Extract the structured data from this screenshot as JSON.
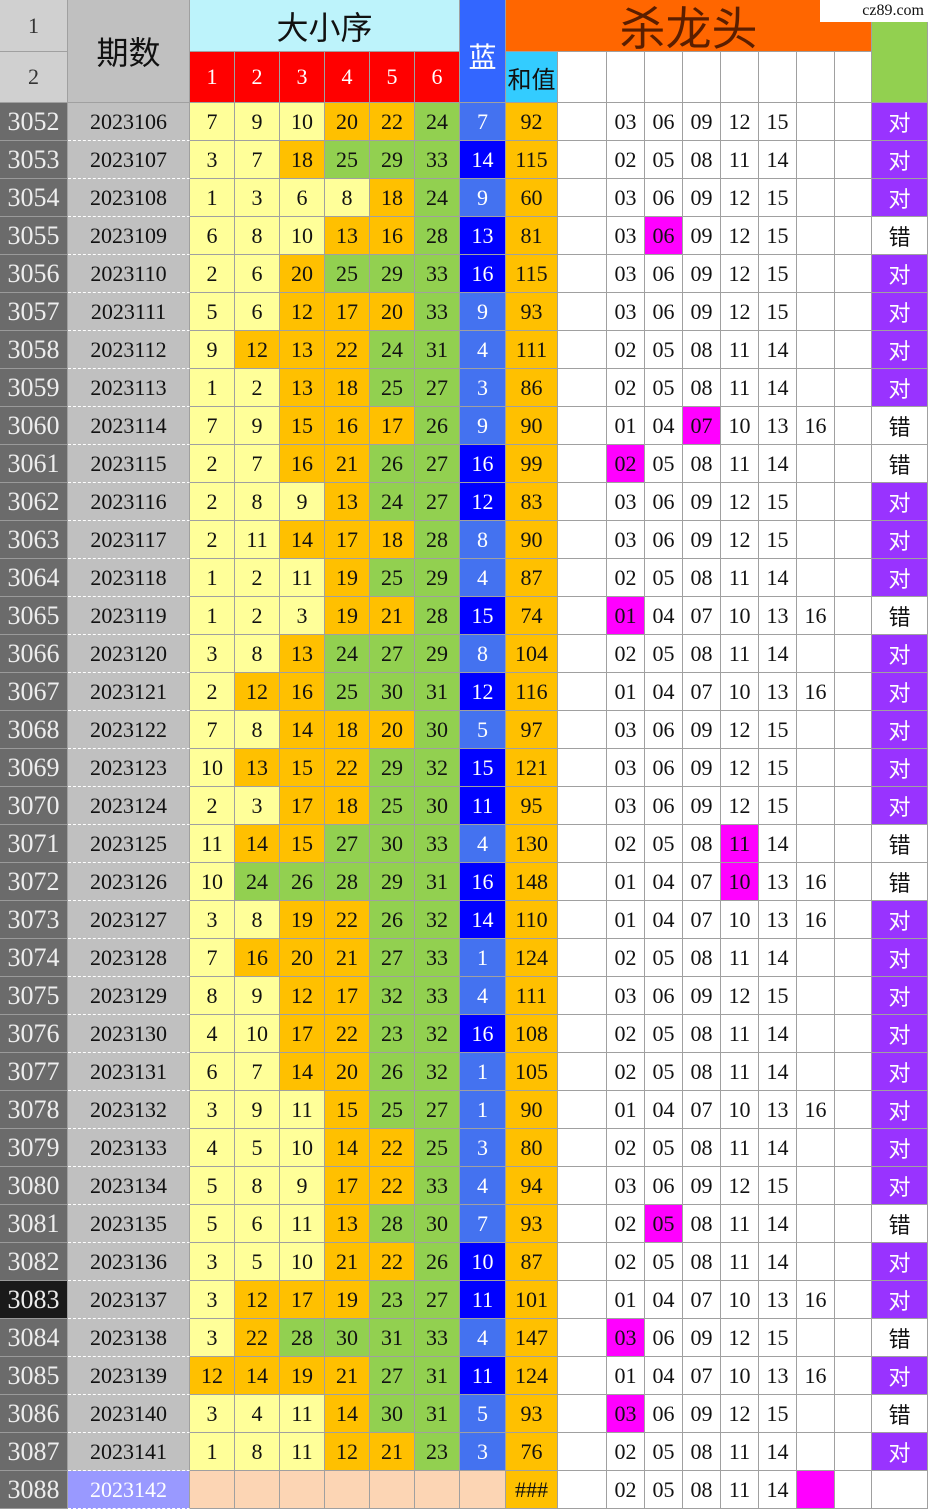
{
  "header": {
    "row_numbers": [
      "1",
      "2"
    ],
    "period": "期数",
    "order": "大小序",
    "ball_cols": [
      "1",
      "2",
      "3",
      "4",
      "5",
      "6"
    ],
    "blue": "蓝",
    "kill": "杀龙头",
    "sum": "和值",
    "watermark": "cz89.com"
  },
  "rows": [
    {
      "n": 3052,
      "period": 2023106,
      "balls": [
        7,
        9,
        10,
        20,
        22,
        24
      ],
      "blue": 7,
      "sum": 92,
      "kill": [
        "03",
        "06",
        "09",
        "12",
        "15"
      ],
      "result": "对"
    },
    {
      "n": 3053,
      "period": 2023107,
      "balls": [
        3,
        7,
        18,
        25,
        29,
        33
      ],
      "blue": 14,
      "sum": 115,
      "kill": [
        "02",
        "05",
        "08",
        "11",
        "14"
      ],
      "result": "对"
    },
    {
      "n": 3054,
      "period": 2023108,
      "balls": [
        1,
        3,
        6,
        8,
        18,
        24
      ],
      "blue": 9,
      "sum": 60,
      "kill": [
        "03",
        "06",
        "09",
        "12",
        "15"
      ],
      "result": "对"
    },
    {
      "n": 3055,
      "period": 2023109,
      "balls": [
        6,
        8,
        10,
        13,
        16,
        28
      ],
      "blue": 13,
      "sum": 81,
      "kill": [
        "03",
        "06",
        "09",
        "12",
        "15"
      ],
      "result": "错"
    },
    {
      "n": 3056,
      "period": 2023110,
      "balls": [
        2,
        6,
        20,
        25,
        29,
        33
      ],
      "blue": 16,
      "sum": 115,
      "kill": [
        "03",
        "06",
        "09",
        "12",
        "15"
      ],
      "result": "对"
    },
    {
      "n": 3057,
      "period": 2023111,
      "balls": [
        5,
        6,
        12,
        17,
        20,
        33
      ],
      "blue": 9,
      "sum": 93,
      "kill": [
        "03",
        "06",
        "09",
        "12",
        "15"
      ],
      "result": "对"
    },
    {
      "n": 3058,
      "period": 2023112,
      "balls": [
        9,
        12,
        13,
        22,
        24,
        31
      ],
      "blue": 4,
      "sum": 111,
      "kill": [
        "02",
        "05",
        "08",
        "11",
        "14"
      ],
      "result": "对"
    },
    {
      "n": 3059,
      "period": 2023113,
      "balls": [
        1,
        2,
        13,
        18,
        25,
        27
      ],
      "blue": 3,
      "sum": 86,
      "kill": [
        "02",
        "05",
        "08",
        "11",
        "14"
      ],
      "result": "对"
    },
    {
      "n": 3060,
      "period": 2023114,
      "balls": [
        7,
        9,
        15,
        16,
        17,
        26
      ],
      "blue": 9,
      "sum": 90,
      "kill": [
        "01",
        "04",
        "07",
        "10",
        "13",
        "16"
      ],
      "result": "错"
    },
    {
      "n": 3061,
      "period": 2023115,
      "balls": [
        2,
        7,
        16,
        21,
        26,
        27
      ],
      "blue": 16,
      "sum": 99,
      "kill": [
        "02",
        "05",
        "08",
        "11",
        "14"
      ],
      "result": "错"
    },
    {
      "n": 3062,
      "period": 2023116,
      "balls": [
        2,
        8,
        9,
        13,
        24,
        27
      ],
      "blue": 12,
      "sum": 83,
      "kill": [
        "03",
        "06",
        "09",
        "12",
        "15"
      ],
      "result": "对"
    },
    {
      "n": 3063,
      "period": 2023117,
      "balls": [
        2,
        11,
        14,
        17,
        18,
        28
      ],
      "blue": 8,
      "sum": 90,
      "kill": [
        "03",
        "06",
        "09",
        "12",
        "15"
      ],
      "result": "对"
    },
    {
      "n": 3064,
      "period": 2023118,
      "balls": [
        1,
        2,
        11,
        19,
        25,
        29
      ],
      "blue": 4,
      "sum": 87,
      "kill": [
        "02",
        "05",
        "08",
        "11",
        "14"
      ],
      "result": "对"
    },
    {
      "n": 3065,
      "period": 2023119,
      "balls": [
        1,
        2,
        3,
        19,
        21,
        28
      ],
      "blue": 15,
      "sum": 74,
      "kill": [
        "01",
        "04",
        "07",
        "10",
        "13",
        "16"
      ],
      "result": "错"
    },
    {
      "n": 3066,
      "period": 2023120,
      "balls": [
        3,
        8,
        13,
        24,
        27,
        29
      ],
      "blue": 8,
      "sum": 104,
      "kill": [
        "02",
        "05",
        "08",
        "11",
        "14"
      ],
      "result": "对"
    },
    {
      "n": 3067,
      "period": 2023121,
      "balls": [
        2,
        12,
        16,
        25,
        30,
        31
      ],
      "blue": 12,
      "sum": 116,
      "kill": [
        "01",
        "04",
        "07",
        "10",
        "13",
        "16"
      ],
      "result": "对"
    },
    {
      "n": 3068,
      "period": 2023122,
      "balls": [
        7,
        8,
        14,
        18,
        20,
        30
      ],
      "blue": 5,
      "sum": 97,
      "kill": [
        "03",
        "06",
        "09",
        "12",
        "15"
      ],
      "result": "对"
    },
    {
      "n": 3069,
      "period": 2023123,
      "balls": [
        10,
        13,
        15,
        22,
        29,
        32
      ],
      "blue": 15,
      "sum": 121,
      "kill": [
        "03",
        "06",
        "09",
        "12",
        "15"
      ],
      "result": "对"
    },
    {
      "n": 3070,
      "period": 2023124,
      "balls": [
        2,
        3,
        17,
        18,
        25,
        30
      ],
      "blue": 11,
      "sum": 95,
      "kill": [
        "03",
        "06",
        "09",
        "12",
        "15"
      ],
      "result": "对"
    },
    {
      "n": 3071,
      "period": 2023125,
      "balls": [
        11,
        14,
        15,
        27,
        30,
        33
      ],
      "blue": 4,
      "sum": 130,
      "kill": [
        "02",
        "05",
        "08",
        "11",
        "14"
      ],
      "result": "错"
    },
    {
      "n": 3072,
      "period": 2023126,
      "balls": [
        10,
        24,
        26,
        28,
        29,
        31
      ],
      "blue": 16,
      "sum": 148,
      "kill": [
        "01",
        "04",
        "07",
        "10",
        "13",
        "16"
      ],
      "result": "错"
    },
    {
      "n": 3073,
      "period": 2023127,
      "balls": [
        3,
        8,
        19,
        22,
        26,
        32
      ],
      "blue": 14,
      "sum": 110,
      "kill": [
        "01",
        "04",
        "07",
        "10",
        "13",
        "16"
      ],
      "result": "对"
    },
    {
      "n": 3074,
      "period": 2023128,
      "balls": [
        7,
        16,
        20,
        21,
        27,
        33
      ],
      "blue": 1,
      "sum": 124,
      "kill": [
        "02",
        "05",
        "08",
        "11",
        "14"
      ],
      "result": "对"
    },
    {
      "n": 3075,
      "period": 2023129,
      "balls": [
        8,
        9,
        12,
        17,
        32,
        33
      ],
      "blue": 4,
      "sum": 111,
      "kill": [
        "03",
        "06",
        "09",
        "12",
        "15"
      ],
      "result": "对"
    },
    {
      "n": 3076,
      "period": 2023130,
      "balls": [
        4,
        10,
        17,
        22,
        23,
        32
      ],
      "blue": 16,
      "sum": 108,
      "kill": [
        "02",
        "05",
        "08",
        "11",
        "14"
      ],
      "result": "对"
    },
    {
      "n": 3077,
      "period": 2023131,
      "balls": [
        6,
        7,
        14,
        20,
        26,
        32
      ],
      "blue": 1,
      "sum": 105,
      "kill": [
        "02",
        "05",
        "08",
        "11",
        "14"
      ],
      "result": "对"
    },
    {
      "n": 3078,
      "period": 2023132,
      "balls": [
        3,
        9,
        11,
        15,
        25,
        27
      ],
      "blue": 1,
      "sum": 90,
      "kill": [
        "01",
        "04",
        "07",
        "10",
        "13",
        "16"
      ],
      "result": "对"
    },
    {
      "n": 3079,
      "period": 2023133,
      "balls": [
        4,
        5,
        10,
        14,
        22,
        25
      ],
      "blue": 3,
      "sum": 80,
      "kill": [
        "02",
        "05",
        "08",
        "11",
        "14"
      ],
      "result": "对"
    },
    {
      "n": 3080,
      "period": 2023134,
      "balls": [
        5,
        8,
        9,
        17,
        22,
        33
      ],
      "blue": 4,
      "sum": 94,
      "kill": [
        "03",
        "06",
        "09",
        "12",
        "15"
      ],
      "result": "对"
    },
    {
      "n": 3081,
      "period": 2023135,
      "balls": [
        5,
        6,
        11,
        13,
        28,
        30
      ],
      "blue": 7,
      "sum": 93,
      "kill": [
        "02",
        "05",
        "08",
        "11",
        "14"
      ],
      "result": "错"
    },
    {
      "n": 3082,
      "period": 2023136,
      "balls": [
        3,
        5,
        10,
        21,
        22,
        26
      ],
      "blue": 10,
      "sum": 87,
      "kill": [
        "02",
        "05",
        "08",
        "11",
        "14"
      ],
      "result": "对"
    },
    {
      "n": 3083,
      "period": 2023137,
      "balls": [
        3,
        12,
        17,
        19,
        23,
        27
      ],
      "blue": 11,
      "sum": 101,
      "kill": [
        "01",
        "04",
        "07",
        "10",
        "13",
        "16"
      ],
      "result": "对"
    },
    {
      "n": 3084,
      "period": 2023138,
      "balls": [
        3,
        22,
        28,
        30,
        31,
        33
      ],
      "blue": 4,
      "sum": 147,
      "kill": [
        "03",
        "06",
        "09",
        "12",
        "15"
      ],
      "result": "错"
    },
    {
      "n": 3085,
      "period": 2023139,
      "balls": [
        12,
        14,
        19,
        21,
        27,
        31
      ],
      "blue": 11,
      "sum": 124,
      "kill": [
        "01",
        "04",
        "07",
        "10",
        "13",
        "16"
      ],
      "result": "对"
    },
    {
      "n": 3086,
      "period": 2023140,
      "balls": [
        3,
        4,
        11,
        14,
        30,
        31
      ],
      "blue": 5,
      "sum": 93,
      "kill": [
        "03",
        "06",
        "09",
        "12",
        "15"
      ],
      "result": "错"
    },
    {
      "n": 3087,
      "period": 2023141,
      "balls": [
        1,
        8,
        11,
        12,
        21,
        23
      ],
      "blue": 3,
      "sum": 76,
      "kill": [
        "02",
        "05",
        "08",
        "11",
        "14"
      ],
      "result": "对"
    },
    {
      "n": 3088,
      "period": 2023142,
      "sum": "###",
      "kill": [
        "02",
        "05",
        "08",
        "11",
        "14"
      ]
    }
  ]
}
